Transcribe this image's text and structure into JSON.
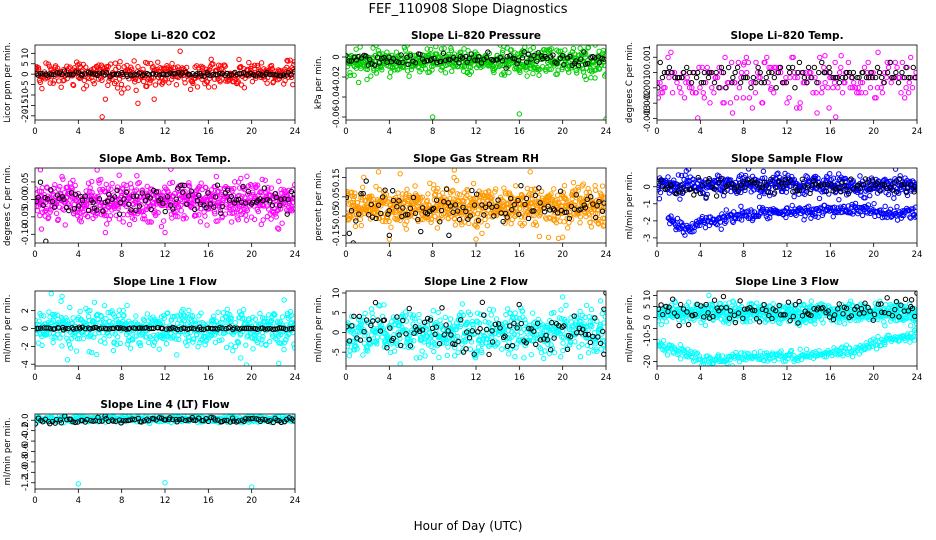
{
  "figure": {
    "title": "FEF_110908  Slope Diagnostics",
    "xlabel": "Hour of Day (UTC)"
  },
  "chart_data": [
    {
      "type": "scatter",
      "title": "Slope Li–820 CO2",
      "ylabel": "Licor ppm per min.",
      "xlim": [
        0,
        24
      ],
      "ylim": [
        -22,
        14
      ],
      "xticks": [
        0,
        4,
        8,
        12,
        16,
        20,
        24
      ],
      "yticks": [
        10,
        5,
        0,
        -5,
        -10,
        -15,
        -20
      ],
      "ytick_labels": [
        "10",
        "5",
        "0",
        "-5",
        "-10",
        "-15",
        "-20"
      ],
      "series": [
        {
          "color": "#ff0000",
          "pattern": {
            "center": 0,
            "spread": 3,
            "density": 420
          },
          "points": [
            [
              4.5,
              -7
            ],
            [
              6.5,
              -12
            ],
            [
              8,
              -9
            ],
            [
              11,
              -12
            ],
            [
              13.4,
              11
            ],
            [
              3.5,
              -5
            ],
            [
              6.2,
              -20.5
            ],
            [
              9.5,
              -14
            ]
          ]
        },
        {
          "color": "#000000",
          "pattern": {
            "center": 0,
            "spread": 0.5,
            "density": 110
          }
        }
      ]
    },
    {
      "type": "scatter",
      "title": "Slope Li–820 Pressure",
      "ylabel": "kPa per min.",
      "xlim": [
        0,
        24
      ],
      "ylim": [
        -0.063,
        0.012
      ],
      "xticks": [
        0,
        4,
        8,
        12,
        16,
        20,
        24
      ],
      "yticks": [
        0,
        -0.02,
        -0.04,
        -0.06
      ],
      "ytick_labels": [
        "0",
        "-0.02",
        "-0.04",
        "-0.06"
      ],
      "series": [
        {
          "color": "#00cc00",
          "pattern": {
            "center": -0.004,
            "spread": 0.007,
            "density": 600
          },
          "points": [
            [
              8,
              -0.06
            ],
            [
              16,
              -0.057
            ],
            [
              24,
              -0.062
            ],
            [
              2.5,
              0.009
            ],
            [
              7.5,
              0.008
            ],
            [
              17,
              0.007
            ],
            [
              19.5,
              -0.017
            ]
          ]
        },
        {
          "color": "#000000",
          "pattern": {
            "center": -0.002,
            "spread": 0.003,
            "density": 110
          }
        }
      ]
    },
    {
      "type": "scatter",
      "title": "Slope Li–820 Temp.",
      "ylabel": "degrees C per min.",
      "xlim": [
        0,
        24
      ],
      "ylim": [
        -0.0031,
        0.0018
      ],
      "xticks": [
        0,
        4,
        8,
        12,
        16,
        20,
        24
      ],
      "yticks": [
        0.001,
        0,
        -0.001,
        -0.002,
        -0.003
      ],
      "ytick_labels": [
        "0.001",
        "0",
        "-0.001",
        "-0.002",
        "-0.003"
      ],
      "series": [
        {
          "color": "#ff00ff",
          "pattern": {
            "center": -0.0005,
            "spread": 0.0009,
            "density": 200,
            "quantum": 0.00033
          },
          "points": [
            [
              16.5,
              -0.0029
            ],
            [
              15.5,
              0.0011
            ],
            [
              17,
              0.0011
            ],
            [
              8,
              0.0005
            ],
            [
              10.5,
              -0.0011
            ]
          ]
        },
        {
          "color": "#000000",
          "pattern": {
            "center": -0.0002,
            "spread": 0.0004,
            "density": 110,
            "quantum": 0.00033
          }
        }
      ]
    },
    {
      "type": "scatter",
      "title": "Slope Amb. Box Temp.",
      "ylabel": "degrees C per min.",
      "xlim": [
        0,
        24
      ],
      "ylim": [
        -0.125,
        0.09
      ],
      "xticks": [
        0,
        4,
        8,
        12,
        16,
        20,
        24
      ],
      "yticks": [
        0.05,
        0,
        -0.05,
        -0.1
      ],
      "ytick_labels": [
        "0.05",
        "0.00",
        "-0.05",
        "-0.10"
      ],
      "series": [
        {
          "color": "#ff00ff",
          "pattern": {
            "center": -0.005,
            "spread": 0.028,
            "density": 700
          },
          "points": [
            [
              0.5,
              0.085
            ],
            [
              0.6,
              -0.085
            ],
            [
              2.5,
              0.065
            ],
            [
              6.5,
              -0.095
            ],
            [
              12,
              -0.095
            ],
            [
              19,
              0.06
            ],
            [
              22.5,
              -0.085
            ]
          ]
        },
        {
          "color": "#000000",
          "pattern": {
            "center": 0,
            "spread": 0.02,
            "density": 110
          },
          "points": [
            [
              1,
              -0.12
            ]
          ]
        }
      ]
    },
    {
      "type": "scatter",
      "title": "Slope Gas Stream RH",
      "ylabel": "percent per min.",
      "xlim": [
        0,
        24
      ],
      "ylim": [
        -0.19,
        0.2
      ],
      "xticks": [
        0,
        4,
        8,
        12,
        16,
        20,
        24
      ],
      "yticks": [
        0.15,
        0.05,
        -0.05,
        -0.15
      ],
      "ytick_labels": [
        "0.15",
        "0.05",
        "-0.05",
        "-0.15"
      ],
      "series": [
        {
          "color": "#ff9900",
          "pattern": {
            "center": 0,
            "spread": 0.05,
            "density": 750
          },
          "points": [
            [
              3,
              0.18
            ],
            [
              4,
              -0.17
            ],
            [
              5,
              0.17
            ],
            [
              10,
              0.19
            ],
            [
              12,
              -0.17
            ],
            [
              17,
              0.18
            ],
            [
              20,
              -0.16
            ]
          ]
        },
        {
          "color": "#000000",
          "pattern": {
            "center": -0.01,
            "spread": 0.05,
            "density": 110
          },
          "points": [
            [
              4,
              -0.15
            ],
            [
              9.5,
              -0.15
            ]
          ]
        }
      ]
    },
    {
      "type": "scatter",
      "title": "Slope Sample Flow",
      "ylabel": "ml/min per min.",
      "xlim": [
        0,
        24
      ],
      "ylim": [
        -3.3,
        1.1
      ],
      "xticks": [
        0,
        4,
        8,
        12,
        16,
        20,
        24
      ],
      "yticks": [
        0,
        -1,
        -2,
        -3
      ],
      "ytick_labels": [
        "0",
        "-1",
        "-2",
        "-3"
      ],
      "series": [
        {
          "color": "#0000ff",
          "pattern": {
            "center": 0.1,
            "spread": 0.3,
            "density": 500
          }
        },
        {
          "color": "#0000ff",
          "band": [
            [
              1,
              -1.8
            ],
            [
              2,
              -2.3
            ],
            [
              3,
              -2.5
            ],
            [
              4,
              -2.0
            ],
            [
              6,
              -1.9
            ],
            [
              8,
              -1.6
            ],
            [
              12,
              -1.5
            ],
            [
              16,
              -1.4
            ],
            [
              18,
              -1.3
            ],
            [
              20,
              -1.4
            ],
            [
              22,
              -1.6
            ],
            [
              24,
              -1.6
            ]
          ],
          "band_spread": 0.2,
          "band_density": 320,
          "band_xrange": [
            1,
            24
          ]
        },
        {
          "color": "#000000",
          "pattern": {
            "center": 0.05,
            "spread": 0.25,
            "density": 110
          }
        }
      ]
    },
    {
      "type": "scatter",
      "title": "Slope Line 1 Flow",
      "ylabel": "ml/min per min.",
      "xlim": [
        0,
        24
      ],
      "ylim": [
        -4.2,
        4.2
      ],
      "xticks": [
        0,
        4,
        8,
        12,
        16,
        20,
        24
      ],
      "yticks": [
        2,
        0,
        -2,
        -4
      ],
      "ytick_labels": [
        "2",
        "0",
        "-2",
        "-4"
      ],
      "series": [
        {
          "color": "#00ffff",
          "pattern": {
            "center": 0,
            "spread": 1.1,
            "density": 600
          },
          "points": [
            [
              1.5,
              3.9
            ],
            [
              2.5,
              3.6
            ],
            [
              3,
              -3.5
            ],
            [
              5,
              -2.6
            ],
            [
              19,
              -3.3
            ],
            [
              22.5,
              -3.9
            ],
            [
              23,
              3.2
            ]
          ]
        },
        {
          "color": "#000000",
          "pattern": {
            "center": 0,
            "spread": 0.06,
            "density": 110
          }
        }
      ]
    },
    {
      "type": "scatter",
      "title": "Slope Line 2 Flow",
      "ylabel": "ml/min per min.",
      "xlim": [
        0,
        24
      ],
      "ylim": [
        -8.5,
        10.5
      ],
      "xticks": [
        0,
        4,
        8,
        12,
        16,
        20,
        24
      ],
      "yticks": [
        10,
        5,
        0,
        -5
      ],
      "ytick_labels": [
        "10",
        "5",
        "0",
        "-5"
      ],
      "series": [
        {
          "color": "#00ffff",
          "pattern": {
            "center": 0,
            "spread": 2.8,
            "density": 600
          },
          "points": [
            [
              3.5,
              7
            ],
            [
              5,
              -8
            ],
            [
              20,
              9
            ],
            [
              23.5,
              8
            ]
          ]
        },
        {
          "color": "#000000",
          "pattern": {
            "center": 0,
            "spread": 2.6,
            "density": 110
          },
          "points": [
            [
              24,
              10
            ],
            [
              23.8,
              -5.5
            ]
          ]
        }
      ]
    },
    {
      "type": "scatter",
      "title": "Slope Line 3 Flow",
      "ylabel": "ml/min per min.",
      "xlim": [
        0,
        24
      ],
      "ylim": [
        -22,
        12
      ],
      "xticks": [
        0,
        4,
        8,
        12,
        16,
        20,
        24
      ],
      "yticks": [
        10,
        5,
        0,
        -5,
        -10,
        -20
      ],
      "ytick_labels": [
        "10",
        "5",
        "0",
        "-5",
        "-10",
        "-20"
      ],
      "series": [
        {
          "color": "#00ffff",
          "pattern": {
            "center": 2,
            "spread": 2.2,
            "density": 650
          }
        },
        {
          "color": "#00ffff",
          "band": [
            [
              0,
              -12
            ],
            [
              2,
              -15
            ],
            [
              4,
              -19
            ],
            [
              6,
              -19
            ],
            [
              10,
              -18
            ],
            [
              14,
              -17
            ],
            [
              18,
              -15
            ],
            [
              22,
              -10
            ],
            [
              24,
              -8
            ]
          ],
          "band_spread": 1.2,
          "band_density": 300,
          "band_xrange": [
            0,
            24
          ]
        },
        {
          "color": "#000000",
          "pattern": {
            "center": 3,
            "spread": 2.5,
            "density": 110
          },
          "points": [
            [
              24,
              11
            ],
            [
              23.5,
              8
            ]
          ]
        }
      ]
    },
    {
      "type": "scatter",
      "title": "Slope Line 4 (LT) Flow",
      "ylabel": "ml/min per min.",
      "xlim": [
        0,
        24
      ],
      "ylim": [
        -1.32,
        0.12
      ],
      "xticks": [
        0,
        4,
        8,
        12,
        16,
        20,
        24
      ],
      "yticks": [
        0,
        -0.2,
        -0.4,
        -0.6,
        -0.8,
        -1,
        -1.2
      ],
      "ytick_labels": [
        "0.0",
        "-0.2",
        "-0.4",
        "-0.6",
        "-0.8",
        "-1.0",
        "-1.2"
      ],
      "series": [
        {
          "color": "#00ffff",
          "pattern": {
            "center": 0.02,
            "spread": 0.03,
            "density": 450
          },
          "points": [
            [
              4,
              -1.22
            ],
            [
              12,
              -1.2
            ],
            [
              20,
              -1.28
            ]
          ]
        },
        {
          "color": "#000000",
          "pattern": {
            "center": 0,
            "spread": 0.03,
            "density": 110
          }
        }
      ]
    }
  ]
}
